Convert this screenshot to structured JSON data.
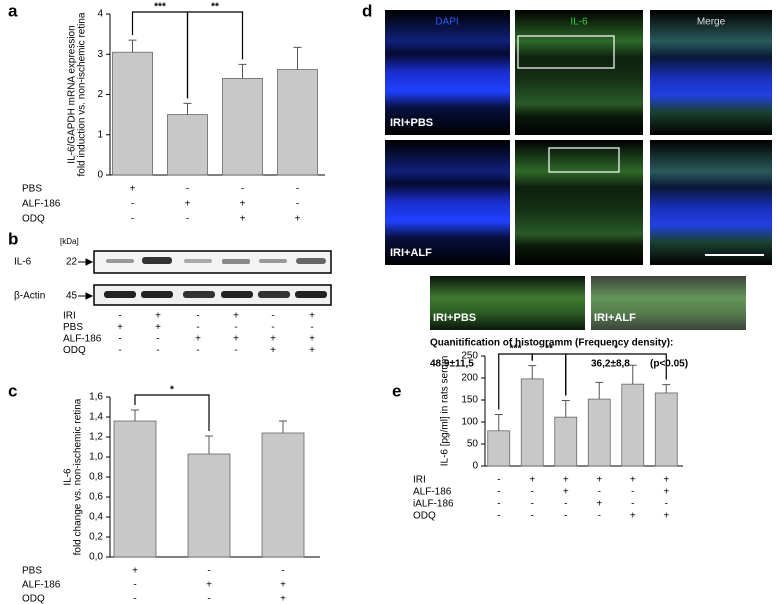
{
  "panels": {
    "a": "a",
    "b": "b",
    "c": "c",
    "d": "d",
    "e": "e"
  },
  "chart_data": [
    {
      "type": "bar",
      "y_label": [
        "IL-6/GAPDH mRNA expression",
        "fold induction vs. non-ischemic retina"
      ],
      "categories": [
        null,
        null,
        null,
        null
      ],
      "values": [
        3.05,
        1.5,
        2.4,
        2.62
      ],
      "errors": [
        0.3,
        0.28,
        0.35,
        0.55
      ],
      "color": "#c8c8c8",
      "ylim": [
        0,
        4
      ],
      "yticks": [
        0,
        1,
        2,
        3,
        4
      ],
      "significance": [
        {
          "label": "***",
          "between": [
            0,
            1
          ]
        },
        {
          "label": "**",
          "between": [
            1,
            2
          ]
        }
      ],
      "conditions": [
        {
          "label": "PBS",
          "marks": [
            "+",
            "-",
            "-",
            "-"
          ]
        },
        {
          "label": "ALF-186",
          "marks": [
            "-",
            "+",
            "+",
            "-"
          ]
        },
        {
          "label": "ODQ",
          "marks": [
            "-",
            "-",
            "+",
            "+"
          ]
        }
      ]
    },
    {
      "type": "bar",
      "y_label": [
        "IL-6",
        "fold change vs. non-ischemic retina"
      ],
      "categories": [
        null,
        null,
        null
      ],
      "values": [
        1.36,
        1.03,
        1.24
      ],
      "errors": [
        0.11,
        0.18,
        0.12
      ],
      "color": "#c8c8c8",
      "ylim": [
        0,
        1.6
      ],
      "yticks": [
        {
          "value": 0,
          "label": "0,0"
        },
        {
          "value": 0.2,
          "label": "0,2"
        },
        {
          "value": 0.4,
          "label": "0,4"
        },
        {
          "value": 0.6,
          "label": "0,6"
        },
        {
          "value": 0.8,
          "label": "0,8"
        },
        {
          "value": 1.0,
          "label": "1,0"
        },
        {
          "value": 1.2,
          "label": "1,2"
        },
        {
          "value": 1.4,
          "label": "1,4"
        },
        {
          "value": 1.6,
          "label": "1,6"
        }
      ],
      "significance": [
        {
          "label": "*",
          "between": [
            0,
            1
          ]
        }
      ],
      "conditions": [
        {
          "label": "PBS",
          "marks": [
            "+",
            "-",
            "-"
          ]
        },
        {
          "label": "ALF-186",
          "marks": [
            "-",
            "+",
            "+"
          ]
        },
        {
          "label": "ODQ",
          "marks": [
            "-",
            "-",
            "+"
          ]
        }
      ]
    },
    {
      "type": "bar",
      "y_label": [
        "IL-6 [pg/ml] in rats serum"
      ],
      "categories": [
        null,
        null,
        null,
        null,
        null,
        null
      ],
      "values": [
        80,
        198,
        111,
        152,
        186,
        166
      ],
      "errors": [
        37,
        30,
        38,
        38,
        43,
        19
      ],
      "color": "#c8c8c8",
      "ylim": [
        0,
        250
      ],
      "yticks": [
        0,
        50,
        100,
        150,
        200,
        250
      ],
      "significance": [
        {
          "label": "***",
          "between": [
            0,
            1
          ]
        },
        {
          "label": "**",
          "between": [
            1,
            2
          ]
        },
        {
          "label": "*",
          "between": [
            2,
            5
          ]
        }
      ],
      "conditions": [
        {
          "label": "IRI",
          "marks": [
            "-",
            "+",
            "+",
            "+",
            "+",
            "+"
          ]
        },
        {
          "label": "ALF-186",
          "marks": [
            "-",
            "-",
            "+",
            "-",
            "-",
            "+"
          ]
        },
        {
          "label": "iALF-186",
          "marks": [
            "-",
            "-",
            "-",
            "+",
            "-",
            "-"
          ]
        },
        {
          "label": "ODQ",
          "marks": [
            "-",
            "-",
            "-",
            "-",
            "+",
            "+"
          ]
        }
      ]
    }
  ],
  "blot": {
    "kda_header": "[kDa]",
    "bands": [
      {
        "label": "IL-6",
        "kda": 22
      },
      {
        "label": "β-Actin",
        "kda": 45
      }
    ],
    "conditions": [
      {
        "label": "IRI",
        "marks": [
          "-",
          "+",
          "-",
          "+",
          "-",
          "+"
        ]
      },
      {
        "label": "PBS",
        "marks": [
          "+",
          "+",
          "-",
          "-",
          "-",
          "-"
        ]
      },
      {
        "label": "ALF-186",
        "marks": [
          "-",
          "-",
          "+",
          "+",
          "+",
          "+"
        ]
      },
      {
        "label": "ODQ",
        "marks": [
          "-",
          "-",
          "-",
          "-",
          "+",
          "+"
        ]
      }
    ]
  },
  "images": {
    "columns": [
      "DAPI",
      "IL-6",
      "Merge"
    ],
    "rows": [
      "IRI+PBS",
      "IRI+ALF"
    ],
    "zoom_labels": [
      "IRI+PBS",
      "IRI+ALF"
    ],
    "quant_title": "Quanitification of histogramm (Frequency density):",
    "quant_values": [
      "48,9±11,5",
      "36,2±8,8"
    ],
    "p_value": "(p<0.05)"
  }
}
